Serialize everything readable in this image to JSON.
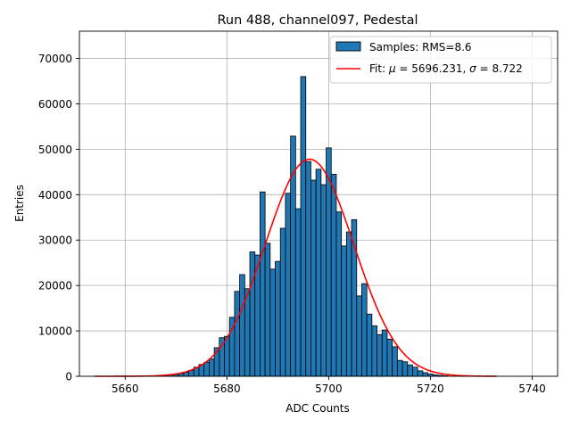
{
  "chart_data": {
    "type": "bar",
    "title": "Run 488, channel097, Pedestal",
    "xlabel": "ADC Counts",
    "ylabel": "Entries",
    "xlim": [
      5651,
      5745
    ],
    "ylim": [
      0,
      76000
    ],
    "xticks": [
      5660,
      5680,
      5700,
      5720,
      5740
    ],
    "yticks": [
      0,
      10000,
      20000,
      30000,
      40000,
      50000,
      60000,
      70000
    ],
    "grid": true,
    "legend_position": "top-right",
    "bin_width": 1,
    "histogram": {
      "name": "Samples: RMS=8.6",
      "color": "#1f77b4",
      "edge_color": "#000000",
      "bins": [
        {
          "x": 5667,
          "y": 100
        },
        {
          "x": 5668,
          "y": 200
        },
        {
          "x": 5669,
          "y": 300
        },
        {
          "x": 5670,
          "y": 400
        },
        {
          "x": 5671,
          "y": 600
        },
        {
          "x": 5672,
          "y": 900
        },
        {
          "x": 5673,
          "y": 1300
        },
        {
          "x": 5674,
          "y": 2000
        },
        {
          "x": 5675,
          "y": 2600
        },
        {
          "x": 5676,
          "y": 3100
        },
        {
          "x": 5677,
          "y": 3800
        },
        {
          "x": 5678,
          "y": 6300
        },
        {
          "x": 5679,
          "y": 8500
        },
        {
          "x": 5680,
          "y": 8800
        },
        {
          "x": 5681,
          "y": 13000
        },
        {
          "x": 5682,
          "y": 18700
        },
        {
          "x": 5683,
          "y": 22400
        },
        {
          "x": 5684,
          "y": 19300
        },
        {
          "x": 5685,
          "y": 27400
        },
        {
          "x": 5686,
          "y": 26700
        },
        {
          "x": 5687,
          "y": 40600
        },
        {
          "x": 5688,
          "y": 29300
        },
        {
          "x": 5689,
          "y": 23600
        },
        {
          "x": 5690,
          "y": 25300
        },
        {
          "x": 5691,
          "y": 32600
        },
        {
          "x": 5692,
          "y": 40300
        },
        {
          "x": 5693,
          "y": 52900
        },
        {
          "x": 5694,
          "y": 36900
        },
        {
          "x": 5695,
          "y": 66000
        },
        {
          "x": 5696,
          "y": 47300
        },
        {
          "x": 5697,
          "y": 43200
        },
        {
          "x": 5698,
          "y": 45600
        },
        {
          "x": 5699,
          "y": 42200
        },
        {
          "x": 5700,
          "y": 50300
        },
        {
          "x": 5701,
          "y": 44500
        },
        {
          "x": 5702,
          "y": 36200
        },
        {
          "x": 5703,
          "y": 28700
        },
        {
          "x": 5704,
          "y": 31800
        },
        {
          "x": 5705,
          "y": 34500
        },
        {
          "x": 5706,
          "y": 17700
        },
        {
          "x": 5707,
          "y": 20400
        },
        {
          "x": 5708,
          "y": 13700
        },
        {
          "x": 5709,
          "y": 11100
        },
        {
          "x": 5710,
          "y": 9200
        },
        {
          "x": 5711,
          "y": 10200
        },
        {
          "x": 5712,
          "y": 8200
        },
        {
          "x": 5713,
          "y": 6500
        },
        {
          "x": 5714,
          "y": 3500
        },
        {
          "x": 5715,
          "y": 3200
        },
        {
          "x": 5716,
          "y": 2500
        },
        {
          "x": 5717,
          "y": 2000
        },
        {
          "x": 5718,
          "y": 1200
        },
        {
          "x": 5719,
          "y": 800
        },
        {
          "x": 5720,
          "y": 500
        },
        {
          "x": 5721,
          "y": 300
        },
        {
          "x": 5722,
          "y": 200
        },
        {
          "x": 5723,
          "y": 100
        }
      ]
    },
    "fit": {
      "name": "Fit: μ = 5696.231, σ = 8.722",
      "label_prefix": "Fit: ",
      "label_mu": "μ",
      "label_mid": " = 5696.231, ",
      "label_sigma": "σ",
      "label_suffix": " = 8.722",
      "color": "#ff0000",
      "mu": 5696.231,
      "sigma": 8.722,
      "amplitude": 47800,
      "x_range": [
        5654,
        5733
      ]
    }
  }
}
